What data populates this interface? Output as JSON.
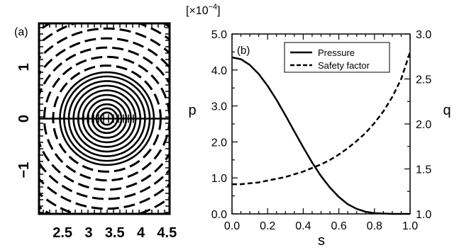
{
  "panels": [
    {
      "label": "(a)",
      "chart_data": {
        "type": "contour",
        "x_ticks": [
          "2.5",
          "3",
          "3.5",
          "4",
          "4.5"
        ],
        "y_ticks": [
          "1",
          "0",
          "−1"
        ],
        "x_tick_values": [
          2.5,
          3.0,
          3.5,
          4.0,
          4.5
        ],
        "y_tick_values": [
          1,
          0,
          -1
        ],
        "xlim": [
          2.05,
          4.55
        ],
        "ylim": [
          -1.85,
          1.85
        ],
        "center": [
          3.35,
          0
        ],
        "solid_contour_radii": [
          0.12,
          0.2,
          0.28,
          0.37,
          0.46,
          0.55,
          0.64,
          0.73,
          0.82,
          0.9
        ],
        "dashed_contour_radii": [
          1.03,
          1.2,
          1.38,
          1.56,
          1.75,
          1.95,
          2.15
        ],
        "line_style_inside": "solid",
        "line_style_outside": "dashed"
      }
    },
    {
      "label": "(b)",
      "chart_data": {
        "type": "line",
        "xlabel": "s",
        "ylabel_left": "p",
        "ylabel_right": "q",
        "scale_note_prefix": "[×10",
        "scale_note_exp": "−4",
        "scale_note_suffix": "]",
        "xlim": [
          0.0,
          1.0
        ],
        "ylim_left": [
          0.0,
          5.0
        ],
        "ylim_right": [
          1.0,
          3.0
        ],
        "x_ticks": [
          "0.0",
          "0.2",
          "0.4",
          "0.6",
          "0.8",
          "1.0"
        ],
        "x_tick_values": [
          0.0,
          0.2,
          0.4,
          0.6,
          0.8,
          1.0
        ],
        "y_ticks_left": [
          "0.0",
          "1.0",
          "2.0",
          "3.0",
          "4.0",
          "5.0"
        ],
        "y_tick_values_left": [
          0,
          1,
          2,
          3,
          4,
          5
        ],
        "y_ticks_right": [
          "1.0",
          "1.5",
          "2.0",
          "2.5",
          "3.0"
        ],
        "y_tick_values_right": [
          1.0,
          1.5,
          2.0,
          2.5,
          3.0
        ],
        "legend_position": "top-right",
        "x": [
          0.0,
          0.05,
          0.1,
          0.15,
          0.2,
          0.25,
          0.3,
          0.35,
          0.4,
          0.45,
          0.5,
          0.55,
          0.6,
          0.65,
          0.7,
          0.75,
          0.8,
          0.85,
          0.9,
          0.95,
          1.0
        ],
        "series": [
          {
            "name": "Pressure",
            "axis": "left",
            "style": "solid",
            "values": [
              4.35,
              4.3,
              4.14,
              3.89,
              3.56,
              3.17,
              2.74,
              2.29,
              1.85,
              1.43,
              1.05,
              0.73,
              0.47,
              0.27,
              0.14,
              0.06,
              0.02,
              0.01,
              0.0,
              0.0,
              0.0
            ]
          },
          {
            "name": "Safety factor",
            "axis": "right",
            "style": "dashed",
            "values": [
              1.33,
              1.33,
              1.34,
              1.35,
              1.37,
              1.39,
              1.41,
              1.44,
              1.47,
              1.51,
              1.55,
              1.6,
              1.66,
              1.73,
              1.81,
              1.9,
              2.01,
              2.14,
              2.3,
              2.5,
              2.8
            ]
          }
        ]
      }
    }
  ]
}
